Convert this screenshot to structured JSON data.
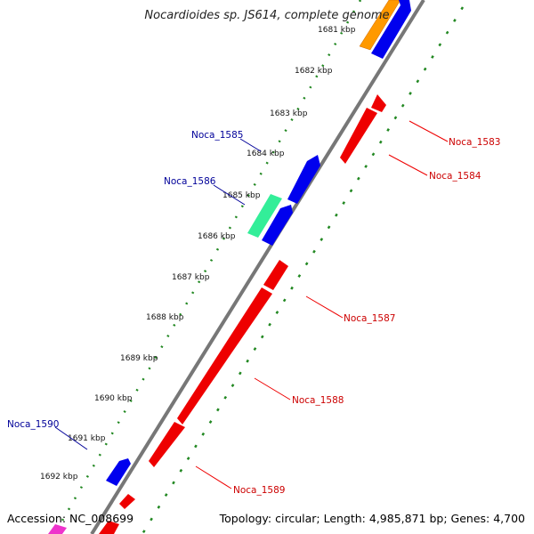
{
  "title": "Nocardioides sp. JS614, complete genome",
  "accession": "Accession: NC_008699",
  "topology": "Topology: circular; Length: 4,985,871 bp; Genes: 4,700",
  "colors": {
    "backbone": "#777777",
    "forward_gene": "#0000ee",
    "reverse_gene": "#ee0000",
    "tick_dots": "#228822",
    "red_label": "#cc0000",
    "blue_label": "#000099",
    "orange_gene": "#ff9900",
    "teal_gene": "#33ee99",
    "magenta_gene": "#ee33cc"
  },
  "ticks": [
    {
      "label": "1681 kbp"
    },
    {
      "label": "1682 kbp"
    },
    {
      "label": "1683 kbp"
    },
    {
      "label": "1684 kbp"
    },
    {
      "label": "1685 kbp"
    },
    {
      "label": "1686 kbp"
    },
    {
      "label": "1687 kbp"
    },
    {
      "label": "1688 kbp"
    },
    {
      "label": "1689 kbp"
    },
    {
      "label": "1690 kbp"
    },
    {
      "label": "1691 kbp"
    },
    {
      "label": "1692 kbp"
    }
  ],
  "gene_labels": [
    {
      "name": "Noca_1583",
      "strand": "reverse"
    },
    {
      "name": "Noca_1584",
      "strand": "reverse"
    },
    {
      "name": "Noca_1585",
      "strand": "forward"
    },
    {
      "name": "Noca_1586",
      "strand": "forward"
    },
    {
      "name": "Noca_1587",
      "strand": "reverse"
    },
    {
      "name": "Noca_1588",
      "strand": "reverse"
    },
    {
      "name": "Noca_1589",
      "strand": "reverse"
    },
    {
      "name": "Noca_1590",
      "strand": "forward"
    }
  ]
}
